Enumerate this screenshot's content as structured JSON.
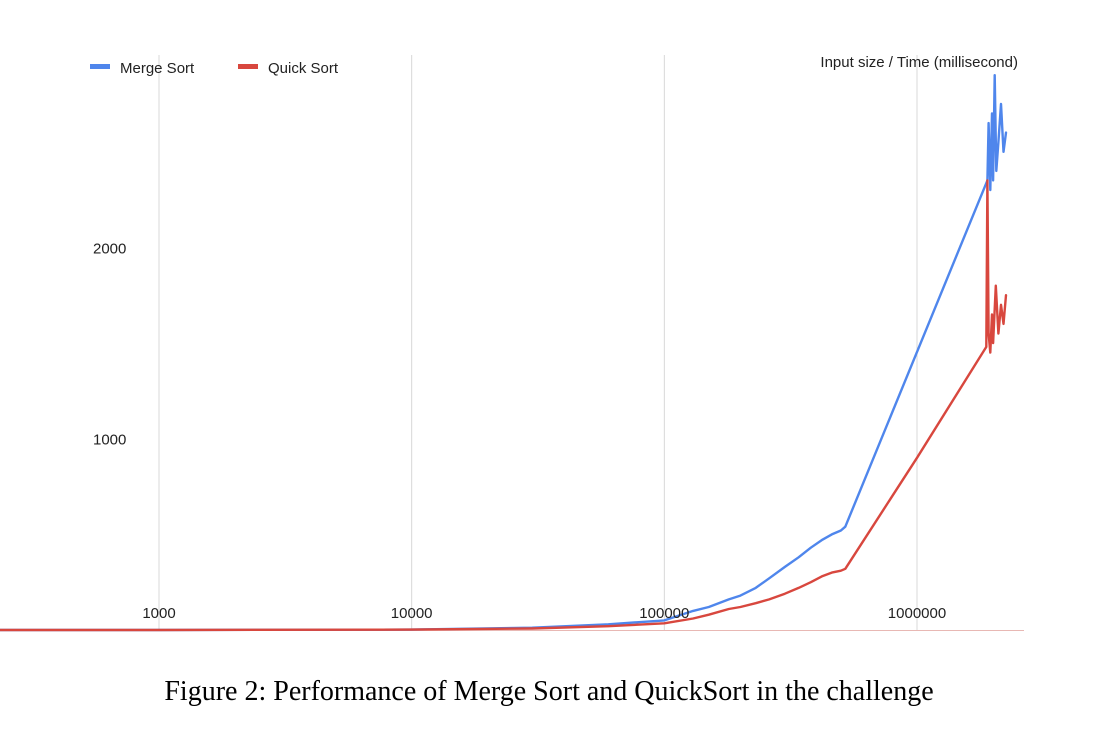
{
  "chart_data": {
    "type": "line",
    "title": "Input size / Time (millisecond)",
    "x_scale": "log",
    "xlim": [
      120,
      2400000
    ],
    "ylim": [
      0,
      3100
    ],
    "x_ticks": [
      1000,
      10000,
      100000,
      1000000
    ],
    "x_tick_labels": [
      "1000",
      "10000",
      "100000",
      "1000000"
    ],
    "y_ticks": [
      1000,
      2000
    ],
    "y_tick_labels": [
      "1000",
      "2000"
    ],
    "grid": "vertical",
    "legend_position": "top-left",
    "series": [
      {
        "name": "Merge Sort",
        "color": "#4f86ec",
        "points": [
          [
            120,
            0
          ],
          [
            1000,
            0
          ],
          [
            10000,
            2
          ],
          [
            30000,
            12
          ],
          [
            60000,
            30
          ],
          [
            100000,
            50
          ],
          [
            130000,
            100
          ],
          [
            150000,
            120
          ],
          [
            180000,
            160
          ],
          [
            200000,
            180
          ],
          [
            230000,
            220
          ],
          [
            260000,
            270
          ],
          [
            300000,
            330
          ],
          [
            340000,
            380
          ],
          [
            380000,
            430
          ],
          [
            420000,
            470
          ],
          [
            460000,
            500
          ],
          [
            500000,
            520
          ],
          [
            520000,
            540
          ],
          [
            1900000,
            2350
          ],
          [
            1920000,
            2650
          ],
          [
            1950000,
            2300
          ],
          [
            1980000,
            2700
          ],
          [
            2000000,
            2350
          ],
          [
            2030000,
            2900
          ],
          [
            2060000,
            2400
          ],
          [
            2100000,
            2550
          ],
          [
            2150000,
            2750
          ],
          [
            2200000,
            2500
          ],
          [
            2250000,
            2600
          ]
        ]
      },
      {
        "name": "Quick Sort",
        "color": "#d8473e",
        "points": [
          [
            120,
            0
          ],
          [
            1000,
            0
          ],
          [
            10000,
            2
          ],
          [
            30000,
            8
          ],
          [
            60000,
            20
          ],
          [
            100000,
            35
          ],
          [
            130000,
            60
          ],
          [
            150000,
            80
          ],
          [
            180000,
            110
          ],
          [
            200000,
            120
          ],
          [
            230000,
            140
          ],
          [
            260000,
            160
          ],
          [
            300000,
            190
          ],
          [
            340000,
            220
          ],
          [
            380000,
            250
          ],
          [
            420000,
            280
          ],
          [
            460000,
            300
          ],
          [
            500000,
            310
          ],
          [
            520000,
            320
          ],
          [
            1000000,
            900
          ],
          [
            1880000,
            1480
          ],
          [
            1900000,
            2350
          ],
          [
            1920000,
            1550
          ],
          [
            1950000,
            1450
          ],
          [
            1980000,
            1650
          ],
          [
            2000000,
            1500
          ],
          [
            2050000,
            1800
          ],
          [
            2100000,
            1550
          ],
          [
            2150000,
            1700
          ],
          [
            2200000,
            1600
          ],
          [
            2250000,
            1750
          ]
        ]
      }
    ]
  },
  "caption": "Figure 2: Performance of Merge Sort and QuickSort in the challenge"
}
